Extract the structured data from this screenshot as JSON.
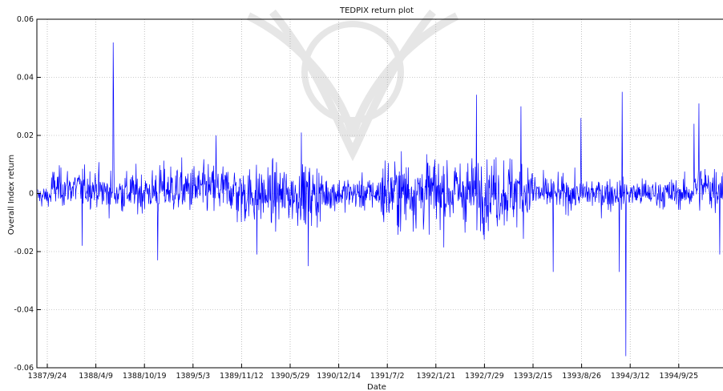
{
  "chart_data": {
    "type": "line",
    "title": "TEDPIX return plot",
    "xlabel": "Date",
    "ylabel": "Overall Index return",
    "x_tick_labels": [
      "1387/9/24",
      "1388/4/9",
      "1388/10/19",
      "1389/5/3",
      "1389/11/12",
      "1390/5/29",
      "1390/12/14",
      "1391/7/2",
      "1392/1/21",
      "1392/7/29",
      "1393/2/15",
      "1393/8/26",
      "1394/3/12",
      "1394/9/25"
    ],
    "y_tick_labels": [
      "0.06",
      "0.04",
      "0.02",
      "0",
      "-0.02",
      "-0.04",
      "-0.06"
    ],
    "y_ticks": [
      0.06,
      0.04,
      0.02,
      0,
      -0.02,
      -0.04,
      -0.06
    ],
    "ylim": [
      -0.06,
      0.06
    ],
    "n_points": 1680,
    "grid": "dotted",
    "series": [
      {
        "color": "#0000ff",
        "regimes": [
          {
            "start": 0.0,
            "end": 0.02,
            "sd": 0.0025,
            "mean": -0.001
          },
          {
            "start": 0.02,
            "end": 0.09,
            "sd": 0.0045,
            "mean": 0.002
          },
          {
            "start": 0.09,
            "end": 0.17,
            "sd": 0.005,
            "mean": 0.0005
          },
          {
            "start": 0.17,
            "end": 0.29,
            "sd": 0.006,
            "mean": 0.0015
          },
          {
            "start": 0.29,
            "end": 0.42,
            "sd": 0.007,
            "mean": -0.0005
          },
          {
            "start": 0.42,
            "end": 0.5,
            "sd": 0.004,
            "mean": 0.0
          },
          {
            "start": 0.5,
            "end": 0.73,
            "sd": 0.0085,
            "mean": 0.0005
          },
          {
            "start": 0.73,
            "end": 0.84,
            "sd": 0.004,
            "mean": 0.0
          },
          {
            "start": 0.84,
            "end": 0.955,
            "sd": 0.0035,
            "mean": 0.0
          },
          {
            "start": 0.955,
            "end": 1.0,
            "sd": 0.006,
            "mean": 0.002
          }
        ],
        "spikes": [
          {
            "x": 0.065,
            "y": -0.018
          },
          {
            "x": 0.11,
            "y": 0.052
          },
          {
            "x": 0.111,
            "y": 0.033
          },
          {
            "x": 0.175,
            "y": -0.023
          },
          {
            "x": 0.26,
            "y": 0.02
          },
          {
            "x": 0.32,
            "y": -0.021
          },
          {
            "x": 0.385,
            "y": 0.021
          },
          {
            "x": 0.395,
            "y": -0.025
          },
          {
            "x": 0.64,
            "y": 0.034
          },
          {
            "x": 0.705,
            "y": 0.03
          },
          {
            "x": 0.752,
            "y": -0.027
          },
          {
            "x": 0.793,
            "y": 0.026
          },
          {
            "x": 0.853,
            "y": 0.035
          },
          {
            "x": 0.849,
            "y": -0.027
          },
          {
            "x": 0.858,
            "y": -0.056
          },
          {
            "x": 0.965,
            "y": 0.031
          },
          {
            "x": 0.958,
            "y": 0.024
          },
          {
            "x": 0.995,
            "y": -0.021
          }
        ]
      }
    ]
  }
}
